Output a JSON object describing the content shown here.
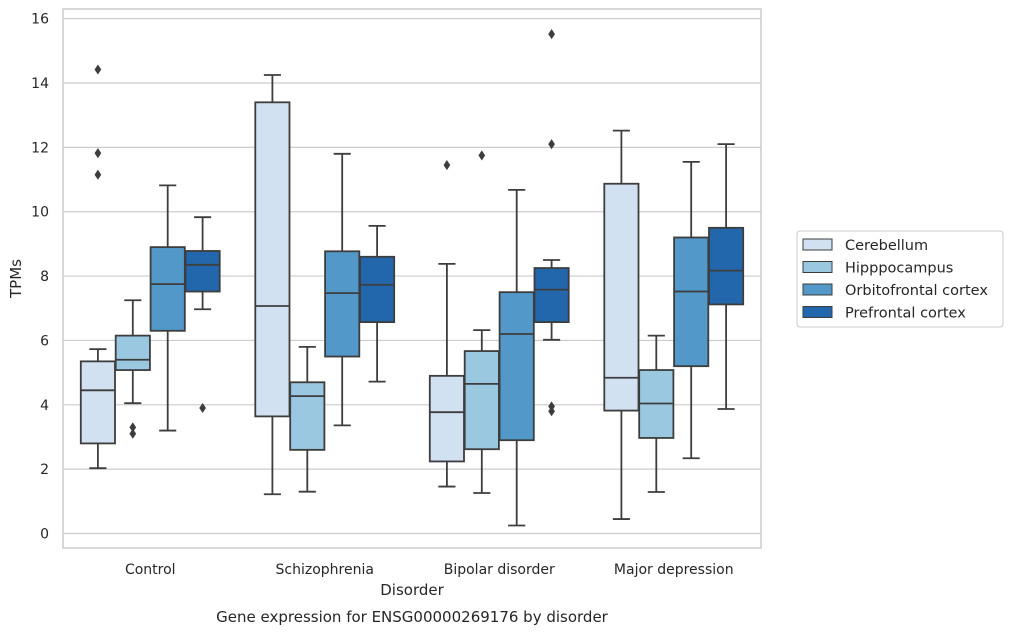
{
  "chart_data": {
    "type": "box",
    "title": "Gene expression for ENSG00000269176 by disorder",
    "xlabel": "Disorder",
    "ylabel": "TPMs",
    "ylim": [
      -0.45,
      16.3
    ],
    "yticks": [
      0,
      2,
      4,
      6,
      8,
      10,
      12,
      14,
      16
    ],
    "grid": true,
    "legend_position": "right",
    "categories": [
      "Control",
      "Schizophrenia",
      "Bipolar disorder",
      "Major depression"
    ],
    "series": [
      {
        "name": "Cerebellum",
        "color": "#d1e1f1",
        "boxes": [
          {
            "whislo": 2.03,
            "q1": 2.8,
            "med": 4.45,
            "q3": 5.35,
            "whishi": 5.73,
            "fliers": [
              14.42,
              11.82,
              11.15
            ]
          },
          {
            "whislo": 1.22,
            "q1": 3.64,
            "med": 7.07,
            "q3": 13.4,
            "whishi": 14.25,
            "fliers": []
          },
          {
            "whislo": 1.46,
            "q1": 2.24,
            "med": 3.77,
            "q3": 4.9,
            "whishi": 8.38,
            "fliers": [
              11.45
            ]
          },
          {
            "whislo": 0.45,
            "q1": 3.82,
            "med": 4.84,
            "q3": 10.87,
            "whishi": 12.52,
            "fliers": []
          }
        ]
      },
      {
        "name": "Hipppocampus",
        "color": "#9ac8e0",
        "boxes": [
          {
            "whislo": 4.05,
            "q1": 5.08,
            "med": 5.4,
            "q3": 6.15,
            "whishi": 7.25,
            "fliers": [
              3.3,
              3.1
            ]
          },
          {
            "whislo": 1.3,
            "q1": 2.6,
            "med": 4.27,
            "q3": 4.7,
            "whishi": 5.8,
            "fliers": []
          },
          {
            "whislo": 1.26,
            "q1": 2.62,
            "med": 4.65,
            "q3": 5.67,
            "whishi": 6.32,
            "fliers": [
              11.75
            ]
          },
          {
            "whislo": 1.29,
            "q1": 2.97,
            "med": 4.04,
            "q3": 5.08,
            "whishi": 6.15,
            "fliers": []
          }
        ]
      },
      {
        "name": "Orbitofrontal cortex",
        "color": "#5299c9",
        "boxes": [
          {
            "whislo": 3.2,
            "q1": 6.3,
            "med": 7.75,
            "q3": 8.9,
            "whishi": 10.82,
            "fliers": []
          },
          {
            "whislo": 3.36,
            "q1": 5.5,
            "med": 7.47,
            "q3": 8.77,
            "whishi": 11.8,
            "fliers": []
          },
          {
            "whislo": 0.25,
            "q1": 2.9,
            "med": 6.2,
            "q3": 7.5,
            "whishi": 10.68,
            "fliers": []
          },
          {
            "whislo": 2.34,
            "q1": 5.2,
            "med": 7.52,
            "q3": 9.2,
            "whishi": 11.55,
            "fliers": []
          }
        ]
      },
      {
        "name": "Prefrontal cortex",
        "color": "#2267ac",
        "boxes": [
          {
            "whislo": 6.97,
            "q1": 7.52,
            "med": 8.35,
            "q3": 8.78,
            "whishi": 9.83,
            "fliers": [
              3.9
            ]
          },
          {
            "whislo": 4.72,
            "q1": 6.57,
            "med": 7.73,
            "q3": 8.6,
            "whishi": 9.56,
            "fliers": []
          },
          {
            "whislo": 6.02,
            "q1": 6.57,
            "med": 7.58,
            "q3": 8.25,
            "whishi": 8.5,
            "fliers": [
              3.95,
              3.8,
              15.52,
              12.1
            ]
          },
          {
            "whislo": 3.87,
            "q1": 7.12,
            "med": 8.17,
            "q3": 9.5,
            "whishi": 12.1,
            "fliers": []
          }
        ]
      }
    ]
  }
}
